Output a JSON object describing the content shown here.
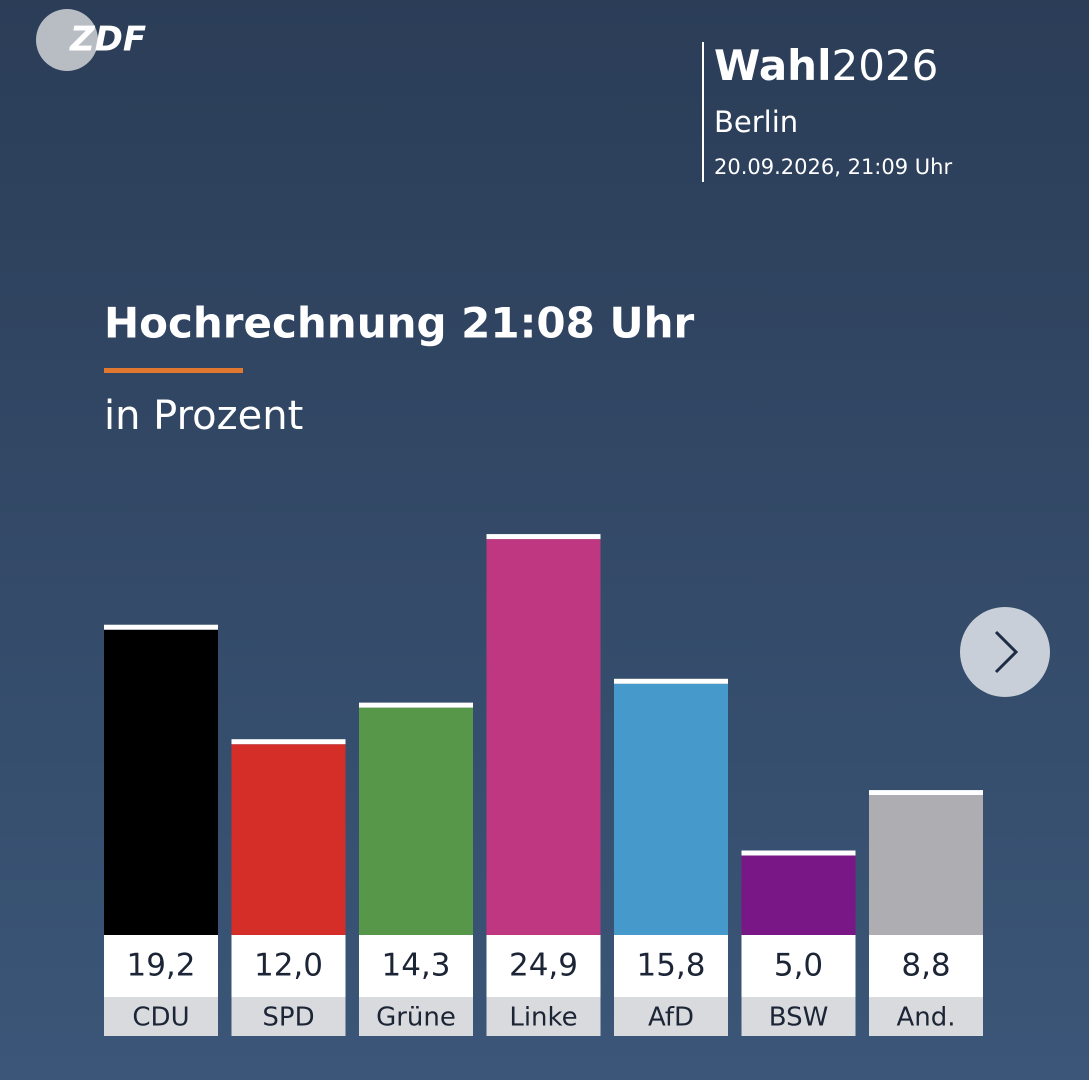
{
  "logo": "ZDF",
  "header": {
    "brand_bold": "Wahl",
    "brand_year": "2026",
    "region": "Berlin",
    "timestamp": "20.09.2026, 21:09 Uhr"
  },
  "chart_data": {
    "type": "bar",
    "title": "Hochrechnung 21:08 Uhr",
    "subtitle": "in Prozent",
    "categories": [
      "CDU",
      "SPD",
      "Grüne",
      "Linke",
      "AfD",
      "BSW",
      "And."
    ],
    "values": [
      19.2,
      12.0,
      14.3,
      24.9,
      15.8,
      5.0,
      8.8
    ],
    "value_labels": [
      "19,2",
      "12,0",
      "14,3",
      "24,9",
      "15,8",
      "5,0",
      "8,8"
    ],
    "colors": [
      "#000000",
      "#d52d28",
      "#57974a",
      "#bf3780",
      "#4699cb",
      "#7a1786",
      "#aeadb2"
    ]
  }
}
